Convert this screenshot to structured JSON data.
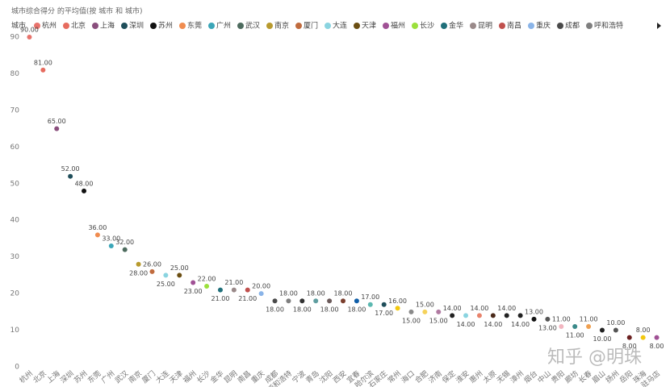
{
  "chart_data": {
    "type": "scatter",
    "title": "城市综合得分 的平均值(按 城市 和 城市)",
    "legend_title": "城市",
    "watermark": "知乎 @明珠",
    "categories": [
      "杭州",
      "北京",
      "上海",
      "深圳",
      "苏州",
      "东莞",
      "广州",
      "武汉",
      "南京",
      "厦门",
      "大连",
      "天津",
      "福州",
      "长沙",
      "金华",
      "昆明",
      "南昌",
      "重庆",
      "成都",
      "呼和浩特",
      "宁波",
      "青岛",
      "沈阳",
      "西安",
      "宜春",
      "哈尔滨",
      "石家庄",
      "常州",
      "海口",
      "合肥",
      "济南",
      "保定",
      "淮安",
      "惠州",
      "太原",
      "无锡",
      "漳州",
      "烟台",
      "中山",
      "贵阳",
      "廊坊",
      "长春",
      "眉山",
      "扬州",
      "岳阳",
      "珠海",
      "驻马店"
    ],
    "values": [
      90,
      81,
      65,
      52,
      48,
      36,
      33,
      32,
      28,
      26,
      25,
      25,
      23,
      22,
      21,
      21,
      21,
      20,
      18,
      18,
      18,
      18,
      18,
      18,
      18,
      17,
      17,
      16,
      15,
      15,
      15,
      14,
      14,
      14,
      14,
      14,
      14,
      13,
      13,
      11,
      11,
      11,
      10,
      10,
      8,
      8,
      8
    ],
    "value_labels": [
      "90.00",
      "81.00",
      "65.00",
      "52.00",
      "48.00",
      "36.00",
      "33.00",
      "32.00",
      "28.00",
      "26.00",
      "25.00",
      "25.00",
      "23.00",
      "22.00",
      "21.00",
      "21.00",
      "21.00",
      "20.00",
      "18.00",
      "18.00",
      "18.00",
      "18.00",
      "18.00",
      "18.00",
      "18.00",
      "17.00",
      "17.00",
      "16.00",
      "15.00",
      "15.00",
      "15.00",
      "14.00",
      "14.00",
      "14.00",
      "14.00",
      "14.00",
      "14.00",
      "13.00",
      "13.00",
      "11.00",
      "11.00",
      "11.00",
      "10.00",
      "10.00",
      "8.00",
      "8.00",
      "8.00"
    ],
    "colors": [
      "#e8736c",
      "#e66c5f",
      "#8a4f7d",
      "#1f4e5a",
      "#111111",
      "#f08c4f",
      "#3ba6b8",
      "#4d6b5e",
      "#b89a2e",
      "#c06b3e",
      "#8ad4e0",
      "#6b4e12",
      "#a05195",
      "#9be03c",
      "#1f6f7a",
      "#9a8a8a",
      "#c0504d",
      "#8ab4e8",
      "#4a4a4a",
      "#7f7f7f",
      "#333333",
      "#5f9ea0",
      "#6b5a5a",
      "#7b3f2e",
      "#0f5ea8",
      "#5bb8b0",
      "#1f4e5a",
      "#f2c80f",
      "#8a8a8a",
      "#f5d25a",
      "#b07aa1",
      "#222222",
      "#8ad4e0",
      "#e8836c",
      "#4a2a1a",
      "#222222",
      "#222222",
      "#111111",
      "#555555",
      "#f2b6c0",
      "#3b8a8a",
      "#f0a050",
      "#222222",
      "#555555",
      "#6b2020",
      "#f2c80f",
      "#a05195"
    ],
    "ylim": [
      0,
      90
    ],
    "yticks": [
      0,
      10,
      20,
      30,
      40,
      50,
      60,
      70,
      80,
      90
    ]
  }
}
